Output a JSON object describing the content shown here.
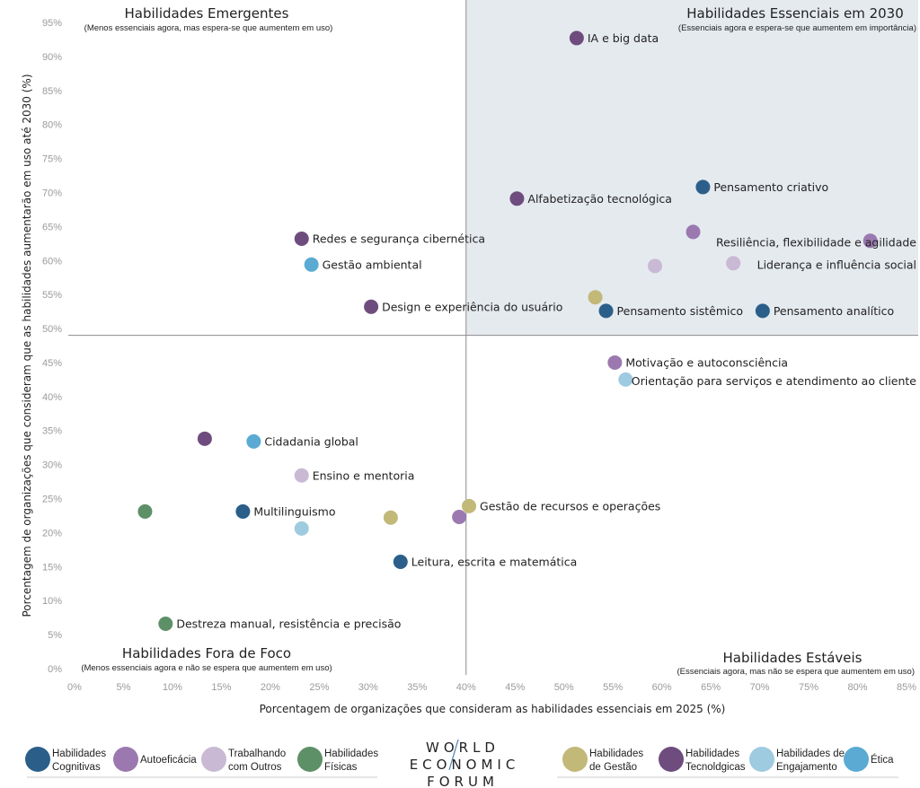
{
  "chart_data": {
    "type": "scatter",
    "xlabel": "Porcentagem de organizações que consideram as habilidades essenciais em 2025 (%)",
    "ylabel": "Porcentagem de organizações que consideram que as habilidades aumentarão em uso até 2030 (%)",
    "xlim": [
      0,
      85
    ],
    "ylim": [
      0,
      95
    ],
    "x_ticks": [
      "0%",
      "5%",
      "10%",
      "15%",
      "20%",
      "25%",
      "30%",
      "35%",
      "40%",
      "45%",
      "50%",
      "55%",
      "60%",
      "65%",
      "70%",
      "75%",
      "80%",
      "85%"
    ],
    "y_ticks": [
      "0%",
      "5%",
      "10%",
      "15%",
      "20%",
      "25%",
      "30%",
      "35%",
      "40%",
      "45%",
      "50%",
      "55%",
      "60%",
      "65%",
      "70%",
      "75%",
      "80%",
      "85%",
      "90%",
      "95%"
    ],
    "grid": false,
    "quadrant_split": {
      "x": 40,
      "y": 49
    },
    "quadrants": [
      {
        "title": "Habilidades Emergentes",
        "subtitle": "(Menos essenciais agora, mas espera-se que aumentem em uso)"
      },
      {
        "title": "Habilidades Essenciais em 2030",
        "subtitle": "(Essenciais agora e espera-se que aumentem em importância)"
      },
      {
        "title": "Habilidades Fora de Foco",
        "subtitle": "(Menos essenciais agora e não se espera que aumentem em uso)"
      },
      {
        "title": "Habilidades Estáveis",
        "subtitle": "(Essenciais agora, mas não se espera que aumentem em uso)"
      }
    ],
    "categories": [
      {
        "key": "cognitivas",
        "label_1": "Habilidades",
        "label_2": "Cognitivas",
        "color": "#2b5f8a"
      },
      {
        "key": "autoeficacia",
        "label_1": "Autoeficácia",
        "label_2": "",
        "color": "#9b79b0"
      },
      {
        "key": "outros",
        "label_1": "Trabalhando",
        "label_2": "com Outros",
        "color": "#c9b9d4"
      },
      {
        "key": "fisicas",
        "label_1": "Habilidades",
        "label_2": "Físicas",
        "color": "#5e9068"
      },
      {
        "key": "gestao",
        "label_1": "Habilidades",
        "label_2": "de Gestão",
        "color": "#c2b878"
      },
      {
        "key": "tecnologicas",
        "label_1": "Habilidades",
        "label_2": "Tecnoldgicas",
        "color": "#6e4d7e"
      },
      {
        "key": "engajamento",
        "label_1": "Habilidades de",
        "label_2": "Engajamento",
        "color": "#9ecbe0"
      },
      {
        "key": "etica",
        "label_1": "Ética",
        "label_2": "",
        "color": "#5aaad4"
      }
    ],
    "points": [
      {
        "label": "IA e big data",
        "x": 51.3,
        "y": 92.7,
        "cat": "tecnologicas"
      },
      {
        "label": "Pensamento criativo",
        "x": 64.2,
        "y": 70.8,
        "cat": "cognitivas"
      },
      {
        "label": "Alfabetização tecnológica",
        "x": 45.2,
        "y": 69.1,
        "cat": "tecnologicas"
      },
      {
        "label": "",
        "x": 63.2,
        "y": 64.2,
        "cat": "autoeficacia"
      },
      {
        "label": "Resiliência, flexibilidade e agilidade",
        "x": 81.3,
        "y": 62.9,
        "cat": "autoeficacia"
      },
      {
        "label": "Liderança e influência social",
        "x": 67.3,
        "y": 59.6,
        "cat": "outros"
      },
      {
        "label": "",
        "x": 59.3,
        "y": 59.2,
        "cat": "outros"
      },
      {
        "label": "",
        "x": 53.2,
        "y": 54.6,
        "cat": "gestao"
      },
      {
        "label": "Pensamento sistêmico",
        "x": 54.3,
        "y": 52.6,
        "cat": "cognitivas"
      },
      {
        "label": "Pensamento analítico",
        "x": 70.3,
        "y": 52.6,
        "cat": "cognitivas"
      },
      {
        "label": "Redes e segurança cibernética",
        "x": 23.2,
        "y": 63.2,
        "cat": "tecnologicas"
      },
      {
        "label": "Gestão ambiental",
        "x": 24.2,
        "y": 59.4,
        "cat": "etica"
      },
      {
        "label": "Design e experiência do usuário",
        "x": 30.3,
        "y": 53.2,
        "cat": "tecnologicas"
      },
      {
        "label": "Motivação e autoconsciência",
        "x": 55.2,
        "y": 45.0,
        "cat": "autoeficacia"
      },
      {
        "label": "Orientação para serviços e atendimento ao cliente",
        "x": 56.3,
        "y": 42.5,
        "cat": "engajamento"
      },
      {
        "label": "",
        "x": 13.3,
        "y": 33.8,
        "cat": "tecnologicas"
      },
      {
        "label": "Cidadania global",
        "x": 18.3,
        "y": 33.4,
        "cat": "etica"
      },
      {
        "label": "Ensino e mentoria",
        "x": 23.2,
        "y": 28.4,
        "cat": "outros"
      },
      {
        "label": "",
        "x": 7.2,
        "y": 23.1,
        "cat": "fisicas"
      },
      {
        "label": "Multilinguismo",
        "x": 17.2,
        "y": 23.1,
        "cat": "cognitivas"
      },
      {
        "label": "",
        "x": 23.2,
        "y": 20.6,
        "cat": "engajamento"
      },
      {
        "label": "",
        "x": 32.3,
        "y": 22.2,
        "cat": "gestao"
      },
      {
        "label": "",
        "x": 39.3,
        "y": 22.3,
        "cat": "autoeficacia"
      },
      {
        "label": "Gestão de recursos e operações",
        "x": 40.3,
        "y": 23.9,
        "cat": "gestao"
      },
      {
        "label": "Leitura, escrita e matemática",
        "x": 33.3,
        "y": 15.7,
        "cat": "cognitivas"
      },
      {
        "label": "Destreza manual, resistência e precisão",
        "x": 9.3,
        "y": 6.6,
        "cat": "fisicas"
      }
    ]
  },
  "logo": {
    "line1": "WORLD",
    "line2": "ECONOMIC",
    "line3": "FORUM"
  },
  "colors": {
    "quadrant_fill": "#e5eaef",
    "divider": "#8c8c8c"
  }
}
